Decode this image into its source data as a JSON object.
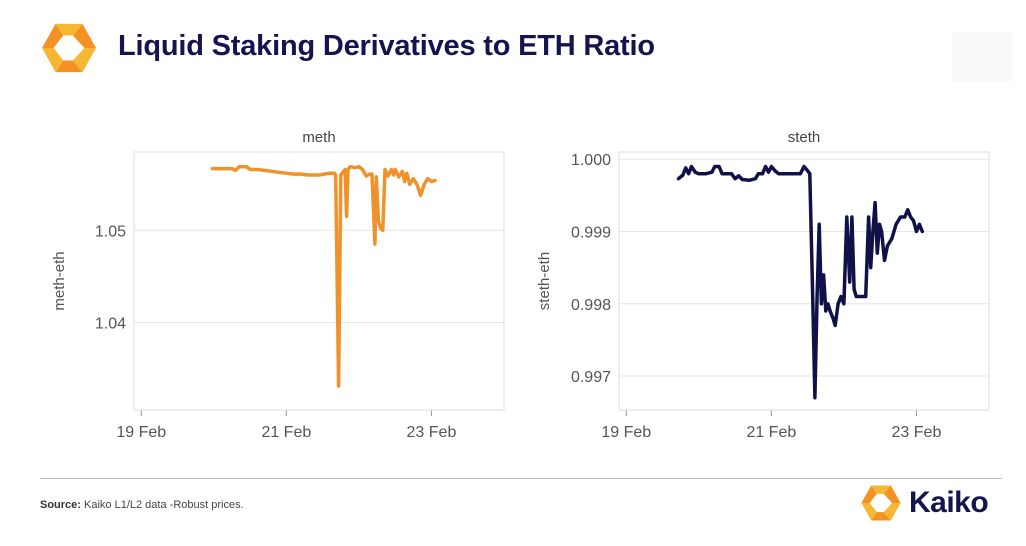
{
  "header": {
    "title": "Liquid Staking Derivatives to ETH Ratio"
  },
  "footer": {
    "source_label": "Source:",
    "source_text": "Kaiko L1/L2 data -Robust prices.",
    "brand_name": "Kaiko"
  },
  "colors": {
    "title": "#15144e",
    "meth_line": "#f0922b",
    "steth_line": "#0f1148",
    "logo_orange": "#f39223",
    "logo_yellow": "#f7b733"
  },
  "chart_data": [
    {
      "type": "line",
      "title": "meth",
      "xlabel": "",
      "ylabel": "meth-eth",
      "x_ticks": [
        {
          "day": 19,
          "label": "19 Feb"
        },
        {
          "day": 21,
          "label": "21 Feb"
        },
        {
          "day": 23,
          "label": "23 Feb"
        }
      ],
      "xlim_day": [
        18.9,
        24.0
      ],
      "y_ticks": [
        1.04,
        1.05
      ],
      "ylim": [
        1.0305,
        1.0585
      ],
      "grid": true,
      "series": [
        {
          "points": [
            [
              19.98,
              1.0567
            ],
            [
              20.1,
              1.0567
            ],
            [
              20.25,
              1.0567
            ],
            [
              20.3,
              1.0565
            ],
            [
              20.35,
              1.0569
            ],
            [
              20.45,
              1.0569
            ],
            [
              20.5,
              1.0566
            ],
            [
              20.6,
              1.0566
            ],
            [
              20.7,
              1.0565
            ],
            [
              20.8,
              1.0564
            ],
            [
              20.9,
              1.0563
            ],
            [
              21.0,
              1.0562
            ],
            [
              21.1,
              1.0561
            ],
            [
              21.2,
              1.0561
            ],
            [
              21.3,
              1.056
            ],
            [
              21.45,
              1.056
            ],
            [
              21.6,
              1.0562
            ],
            [
              21.66,
              1.0562
            ],
            [
              21.68,
              1.056
            ],
            [
              21.72,
              1.0331
            ],
            [
              21.75,
              1.056
            ],
            [
              21.78,
              1.0563
            ],
            [
              21.81,
              1.0566
            ],
            [
              21.83,
              1.0515
            ],
            [
              21.85,
              1.0566
            ],
            [
              21.88,
              1.0569
            ],
            [
              21.95,
              1.0568
            ],
            [
              22.0,
              1.0569
            ],
            [
              22.05,
              1.0566
            ],
            [
              22.1,
              1.0559
            ],
            [
              22.15,
              1.0561
            ],
            [
              22.18,
              1.0561
            ],
            [
              22.22,
              1.0485
            ],
            [
              22.24,
              1.0558
            ],
            [
              22.27,
              1.051
            ],
            [
              22.3,
              1.0502
            ],
            [
              22.33,
              1.05
            ],
            [
              22.36,
              1.0566
            ],
            [
              22.4,
              1.0559
            ],
            [
              22.45,
              1.0566
            ],
            [
              22.48,
              1.056
            ],
            [
              22.5,
              1.0566
            ],
            [
              22.55,
              1.0558
            ],
            [
              22.6,
              1.0564
            ],
            [
              22.63,
              1.0553
            ],
            [
              22.66,
              1.0562
            ],
            [
              22.7,
              1.055
            ],
            [
              22.75,
              1.0556
            ],
            [
              22.8,
              1.055
            ],
            [
              22.85,
              1.0538
            ],
            [
              22.9,
              1.055
            ],
            [
              22.95,
              1.0556
            ],
            [
              23.0,
              1.0553
            ],
            [
              23.05,
              1.0554
            ]
          ]
        }
      ]
    },
    {
      "type": "line",
      "title": "steth",
      "xlabel": "",
      "ylabel": "steth-eth",
      "x_ticks": [
        {
          "day": 19,
          "label": "19 Feb"
        },
        {
          "day": 21,
          "label": "21 Feb"
        },
        {
          "day": 23,
          "label": "23 Feb"
        }
      ],
      "xlim_day": [
        18.9,
        24.0
      ],
      "y_ticks": [
        0.997,
        0.998,
        0.999,
        "1.000"
      ],
      "ylim": [
        0.99653,
        1.0001
      ],
      "grid": true,
      "series": [
        {
          "points": [
            [
              19.72,
              0.99973
            ],
            [
              19.78,
              0.99978
            ],
            [
              19.82,
              0.99988
            ],
            [
              19.86,
              0.9998
            ],
            [
              19.9,
              0.9999
            ],
            [
              19.95,
              0.99982
            ],
            [
              20.0,
              0.9998
            ],
            [
              20.1,
              0.9998
            ],
            [
              20.18,
              0.99982
            ],
            [
              20.22,
              0.9999
            ],
            [
              20.28,
              0.9999
            ],
            [
              20.32,
              0.9998
            ],
            [
              20.45,
              0.9998
            ],
            [
              20.5,
              0.99973
            ],
            [
              20.55,
              0.99977
            ],
            [
              20.6,
              0.99972
            ],
            [
              20.7,
              0.99971
            ],
            [
              20.78,
              0.99973
            ],
            [
              20.82,
              0.9998
            ],
            [
              20.88,
              0.9998
            ],
            [
              20.92,
              0.9999
            ],
            [
              20.96,
              0.99982
            ],
            [
              21.0,
              0.9999
            ],
            [
              21.05,
              0.99984
            ],
            [
              21.1,
              0.9998
            ],
            [
              21.2,
              0.9998
            ],
            [
              21.3,
              0.9998
            ],
            [
              21.4,
              0.9998
            ],
            [
              21.45,
              0.9999
            ],
            [
              21.5,
              0.99984
            ],
            [
              21.53,
              0.9998
            ],
            [
              21.57,
              0.9981
            ],
            [
              21.6,
              0.9967
            ],
            [
              21.63,
              0.9981
            ],
            [
              21.66,
              0.9991
            ],
            [
              21.69,
              0.998
            ],
            [
              21.72,
              0.9984
            ],
            [
              21.75,
              0.9979
            ],
            [
              21.78,
              0.998
            ],
            [
              21.81,
              0.9979
            ],
            [
              21.85,
              0.9978
            ],
            [
              21.88,
              0.9977
            ],
            [
              21.92,
              0.998
            ],
            [
              21.96,
              0.9981
            ],
            [
              22.0,
              0.998
            ],
            [
              22.04,
              0.9992
            ],
            [
              22.08,
              0.9983
            ],
            [
              22.11,
              0.9992
            ],
            [
              22.14,
              0.9982
            ],
            [
              22.17,
              0.9981
            ],
            [
              22.2,
              0.9981
            ],
            [
              22.25,
              0.9981
            ],
            [
              22.3,
              0.9981
            ],
            [
              22.34,
              0.9992
            ],
            [
              22.37,
              0.9985
            ],
            [
              22.4,
              0.999
            ],
            [
              22.43,
              0.9994
            ],
            [
              22.46,
              0.9987
            ],
            [
              22.49,
              0.9991
            ],
            [
              22.52,
              0.999
            ],
            [
              22.56,
              0.9986
            ],
            [
              22.6,
              0.9988
            ],
            [
              22.66,
              0.9989
            ],
            [
              22.72,
              0.9991
            ],
            [
              22.78,
              0.9992
            ],
            [
              22.84,
              0.9992
            ],
            [
              22.88,
              0.9993
            ],
            [
              22.92,
              0.9992
            ],
            [
              22.96,
              0.99915
            ],
            [
              23.0,
              0.999
            ],
            [
              23.04,
              0.9991
            ],
            [
              23.08,
              0.999
            ]
          ]
        }
      ]
    }
  ]
}
